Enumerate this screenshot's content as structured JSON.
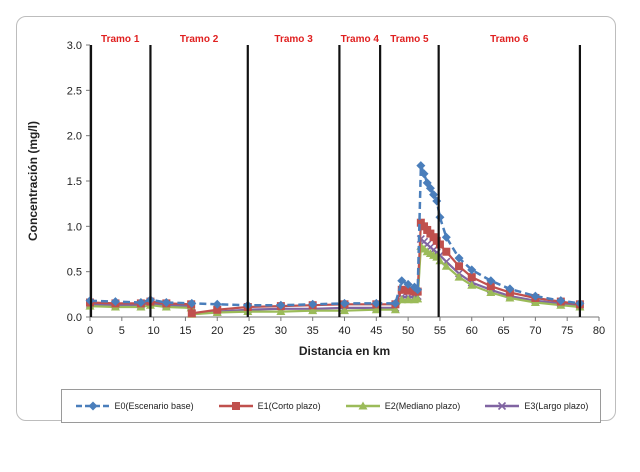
{
  "chart_data": {
    "type": "line",
    "title": "",
    "xlabel": "Distancia en km",
    "ylabel": "Concentración (mg/l)",
    "xlim": [
      0,
      80
    ],
    "ylim": [
      0,
      3.0
    ],
    "x_ticks": [
      "0",
      "5",
      "10",
      "15",
      "20",
      "25",
      "30",
      "35",
      "40",
      "45",
      "50",
      "55",
      "60",
      "65",
      "70",
      "75",
      "80"
    ],
    "y_ticks": [
      "0.0",
      "0.5",
      "1.0",
      "1.5",
      "2.0",
      "2.5",
      "3.0"
    ],
    "grid": false,
    "legend_position": "bottom",
    "segments": [
      {
        "label": "Tramo 1",
        "start": 0,
        "end": 9.5
      },
      {
        "label": "Tramo 2",
        "start": 9.5,
        "end": 24.8
      },
      {
        "label": "Tramo 3",
        "start": 24.8,
        "end": 39.2
      },
      {
        "label": "Tramo 4",
        "start": 39.2,
        "end": 45.6
      },
      {
        "label": "Tramo 5",
        "start": 45.6,
        "end": 54.8
      },
      {
        "label": "Tramo 6",
        "start": 54.8,
        "end": 77
      }
    ],
    "series": [
      {
        "name": "E0(Escenario base)",
        "color": "#4a7ebb",
        "marker": "diamond",
        "dash": true,
        "x": [
          0,
          4,
          8,
          9.5,
          12,
          16,
          20,
          24.8,
          30,
          35,
          40,
          45,
          48,
          49,
          50,
          51,
          51.5,
          52,
          52.5,
          53,
          53.5,
          54,
          54.5,
          55,
          56,
          58,
          60,
          63,
          66,
          70,
          74,
          77
        ],
        "y": [
          0.18,
          0.17,
          0.16,
          0.19,
          0.16,
          0.15,
          0.14,
          0.13,
          0.13,
          0.14,
          0.15,
          0.15,
          0.15,
          0.4,
          0.36,
          0.33,
          0.3,
          1.67,
          1.58,
          1.48,
          1.42,
          1.35,
          1.28,
          1.1,
          0.88,
          0.65,
          0.52,
          0.4,
          0.31,
          0.23,
          0.18,
          0.15
        ]
      },
      {
        "name": "E1(Corto plazo)",
        "color": "#c0504d",
        "marker": "square",
        "dash": false,
        "x": [
          0,
          4,
          8,
          9.5,
          12,
          15.9,
          16,
          20,
          24.8,
          30,
          35,
          40,
          45,
          48,
          49,
          50,
          51,
          51.5,
          52,
          52.5,
          53,
          53.5,
          54,
          54.5,
          55,
          56,
          58,
          60,
          63,
          66,
          70,
          74,
          77
        ],
        "y": [
          0.16,
          0.15,
          0.15,
          0.17,
          0.15,
          0.14,
          0.04,
          0.08,
          0.11,
          0.12,
          0.13,
          0.14,
          0.14,
          0.14,
          0.3,
          0.29,
          0.28,
          0.28,
          1.04,
          1.0,
          0.96,
          0.92,
          0.88,
          0.84,
          0.8,
          0.72,
          0.56,
          0.44,
          0.34,
          0.27,
          0.21,
          0.17,
          0.14
        ]
      },
      {
        "name": "E2(Mediano plazo)",
        "color": "#9bbb59",
        "marker": "triangle",
        "dash": false,
        "x": [
          0,
          4,
          8,
          9.5,
          12,
          15.9,
          16,
          20,
          24.8,
          30,
          35,
          40,
          45,
          48,
          49,
          50,
          51,
          51.5,
          52,
          52.5,
          53,
          53.5,
          54,
          54.5,
          55,
          56,
          58,
          60,
          63,
          66,
          70,
          74,
          77
        ],
        "y": [
          0.12,
          0.11,
          0.11,
          0.13,
          0.11,
          0.1,
          0.03,
          0.05,
          0.06,
          0.06,
          0.07,
          0.07,
          0.08,
          0.08,
          0.19,
          0.19,
          0.19,
          0.2,
          0.78,
          0.75,
          0.72,
          0.7,
          0.68,
          0.66,
          0.62,
          0.56,
          0.44,
          0.35,
          0.27,
          0.21,
          0.16,
          0.13,
          0.11
        ]
      },
      {
        "name": "E3(Largo plazo)",
        "color": "#8064a2",
        "marker": "x",
        "dash": false,
        "x": [
          0,
          4,
          8,
          9.5,
          12,
          15.9,
          16,
          20,
          24.8,
          30,
          35,
          40,
          45,
          48,
          49,
          50,
          51,
          51.5,
          52,
          52.5,
          53,
          53.5,
          54,
          54.5,
          55,
          56,
          58,
          60,
          63,
          66,
          70,
          74,
          77
        ],
        "y": [
          0.14,
          0.13,
          0.13,
          0.15,
          0.13,
          0.12,
          0.04,
          0.06,
          0.08,
          0.09,
          0.09,
          0.1,
          0.1,
          0.1,
          0.22,
          0.22,
          0.22,
          0.23,
          0.86,
          0.83,
          0.8,
          0.77,
          0.74,
          0.71,
          0.68,
          0.61,
          0.48,
          0.38,
          0.3,
          0.23,
          0.18,
          0.15,
          0.12
        ]
      }
    ]
  }
}
